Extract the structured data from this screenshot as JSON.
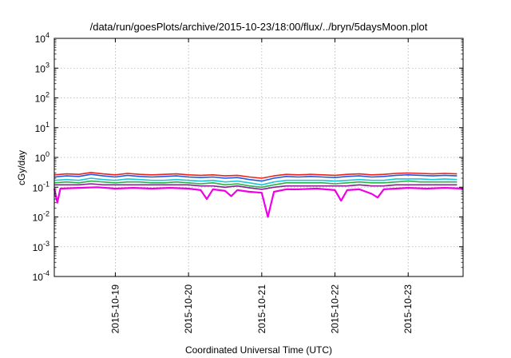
{
  "chart_data": {
    "type": "line",
    "title": "/data/run/goesPlots/archive/2015-10-23/18:00/flux/../bryn/5daysMoon.plot",
    "xlabel": "Coordinated Universal Time (UTC)",
    "ylabel": "cGy/day",
    "yscale": "log",
    "ylim": [
      0.0001,
      10000
    ],
    "xlim": [
      "2015-10-18T04:00",
      "2015-10-23T18:00"
    ],
    "grid": true,
    "x_ticks": [
      "2015-10-19",
      "2015-10-20",
      "2015-10-21",
      "2015-10-22",
      "2015-10-23"
    ],
    "y_ticks": [
      {
        "value": 0.0001,
        "base": "10",
        "exp": "-4"
      },
      {
        "value": 0.001,
        "base": "10",
        "exp": "-3"
      },
      {
        "value": 0.01,
        "base": "10",
        "exp": "-2"
      },
      {
        "value": 0.1,
        "base": "10",
        "exp": "-1"
      },
      {
        "value": 1,
        "base": "10",
        "exp": "0"
      },
      {
        "value": 10,
        "base": "10",
        "exp": "1"
      },
      {
        "value": 100,
        "base": "10",
        "exp": "2"
      },
      {
        "value": 1000,
        "base": "10",
        "exp": "3"
      },
      {
        "value": 10000,
        "base": "10",
        "exp": "4"
      }
    ],
    "series": [
      {
        "color": "#e8241c",
        "values": [
          [
            "2015-10-18T04:00",
            0.26
          ],
          [
            "2015-10-18T08:00",
            0.28
          ],
          [
            "2015-10-18T12:00",
            0.27
          ],
          [
            "2015-10-18T16:00",
            0.31
          ],
          [
            "2015-10-18T20:00",
            0.28
          ],
          [
            "2015-10-19T00:00",
            0.26
          ],
          [
            "2015-10-19T04:00",
            0.29
          ],
          [
            "2015-10-19T08:00",
            0.27
          ],
          [
            "2015-10-19T12:00",
            0.26
          ],
          [
            "2015-10-19T16:00",
            0.27
          ],
          [
            "2015-10-19T20:00",
            0.28
          ],
          [
            "2015-10-20T00:00",
            0.26
          ],
          [
            "2015-10-20T04:00",
            0.25
          ],
          [
            "2015-10-20T08:00",
            0.26
          ],
          [
            "2015-10-20T12:00",
            0.24
          ],
          [
            "2015-10-20T16:00",
            0.25
          ],
          [
            "2015-10-20T20:00",
            0.22
          ],
          [
            "2015-10-21T00:00",
            0.2
          ],
          [
            "2015-10-21T04:00",
            0.24
          ],
          [
            "2015-10-21T08:00",
            0.27
          ],
          [
            "2015-10-21T12:00",
            0.26
          ],
          [
            "2015-10-21T16:00",
            0.27
          ],
          [
            "2015-10-21T20:00",
            0.26
          ],
          [
            "2015-10-22T00:00",
            0.25
          ],
          [
            "2015-10-22T04:00",
            0.27
          ],
          [
            "2015-10-22T08:00",
            0.28
          ],
          [
            "2015-10-22T12:00",
            0.26
          ],
          [
            "2015-10-22T16:00",
            0.27
          ],
          [
            "2015-10-22T20:00",
            0.29
          ],
          [
            "2015-10-23T00:00",
            0.3
          ],
          [
            "2015-10-23T04:00",
            0.29
          ],
          [
            "2015-10-23T08:00",
            0.28
          ],
          [
            "2015-10-23T12:00",
            0.29
          ],
          [
            "2015-10-23T16:00",
            0.28
          ]
        ]
      },
      {
        "color": "#1e5ae6",
        "values": [
          [
            "2015-10-18T04:00",
            0.22
          ],
          [
            "2015-10-18T08:00",
            0.24
          ],
          [
            "2015-10-18T12:00",
            0.23
          ],
          [
            "2015-10-18T16:00",
            0.27
          ],
          [
            "2015-10-18T20:00",
            0.24
          ],
          [
            "2015-10-19T00:00",
            0.22
          ],
          [
            "2015-10-19T04:00",
            0.25
          ],
          [
            "2015-10-19T08:00",
            0.23
          ],
          [
            "2015-10-19T12:00",
            0.22
          ],
          [
            "2015-10-19T16:00",
            0.23
          ],
          [
            "2015-10-19T20:00",
            0.24
          ],
          [
            "2015-10-20T00:00",
            0.22
          ],
          [
            "2015-10-20T04:00",
            0.21
          ],
          [
            "2015-10-20T08:00",
            0.22
          ],
          [
            "2015-10-20T12:00",
            0.2
          ],
          [
            "2015-10-20T16:00",
            0.21
          ],
          [
            "2015-10-20T20:00",
            0.18
          ],
          [
            "2015-10-21T00:00",
            0.16
          ],
          [
            "2015-10-21T04:00",
            0.2
          ],
          [
            "2015-10-21T08:00",
            0.23
          ],
          [
            "2015-10-21T12:00",
            0.22
          ],
          [
            "2015-10-21T16:00",
            0.23
          ],
          [
            "2015-10-21T20:00",
            0.22
          ],
          [
            "2015-10-22T00:00",
            0.21
          ],
          [
            "2015-10-22T04:00",
            0.23
          ],
          [
            "2015-10-22T08:00",
            0.24
          ],
          [
            "2015-10-22T12:00",
            0.22
          ],
          [
            "2015-10-22T16:00",
            0.23
          ],
          [
            "2015-10-22T20:00",
            0.25
          ],
          [
            "2015-10-23T00:00",
            0.26
          ],
          [
            "2015-10-23T04:00",
            0.25
          ],
          [
            "2015-10-23T08:00",
            0.24
          ],
          [
            "2015-10-23T12:00",
            0.25
          ],
          [
            "2015-10-23T16:00",
            0.24
          ]
        ]
      },
      {
        "color": "#19c8d8",
        "values": [
          [
            "2015-10-18T04:00",
            0.17
          ],
          [
            "2015-10-18T08:00",
            0.18
          ],
          [
            "2015-10-18T12:00",
            0.17
          ],
          [
            "2015-10-18T16:00",
            0.2
          ],
          [
            "2015-10-18T20:00",
            0.18
          ],
          [
            "2015-10-19T00:00",
            0.17
          ],
          [
            "2015-10-19T04:00",
            0.19
          ],
          [
            "2015-10-19T08:00",
            0.18
          ],
          [
            "2015-10-19T12:00",
            0.17
          ],
          [
            "2015-10-19T16:00",
            0.17
          ],
          [
            "2015-10-19T20:00",
            0.18
          ],
          [
            "2015-10-20T00:00",
            0.17
          ],
          [
            "2015-10-20T04:00",
            0.16
          ],
          [
            "2015-10-20T08:00",
            0.17
          ],
          [
            "2015-10-20T12:00",
            0.15
          ],
          [
            "2015-10-20T16:00",
            0.16
          ],
          [
            "2015-10-20T20:00",
            0.14
          ],
          [
            "2015-10-21T00:00",
            0.12
          ],
          [
            "2015-10-21T04:00",
            0.15
          ],
          [
            "2015-10-21T08:00",
            0.17
          ],
          [
            "2015-10-21T12:00",
            0.17
          ],
          [
            "2015-10-21T16:00",
            0.17
          ],
          [
            "2015-10-21T20:00",
            0.17
          ],
          [
            "2015-10-22T00:00",
            0.16
          ],
          [
            "2015-10-22T04:00",
            0.17
          ],
          [
            "2015-10-22T08:00",
            0.18
          ],
          [
            "2015-10-22T12:00",
            0.17
          ],
          [
            "2015-10-22T16:00",
            0.17
          ],
          [
            "2015-10-22T20:00",
            0.19
          ],
          [
            "2015-10-23T00:00",
            0.19
          ],
          [
            "2015-10-23T04:00",
            0.19
          ],
          [
            "2015-10-23T08:00",
            0.18
          ],
          [
            "2015-10-23T12:00",
            0.19
          ],
          [
            "2015-10-23T16:00",
            0.18
          ]
        ]
      },
      {
        "color": "#2db24a",
        "values": [
          [
            "2015-10-18T04:00",
            0.14
          ],
          [
            "2015-10-18T08:00",
            0.15
          ],
          [
            "2015-10-18T12:00",
            0.14
          ],
          [
            "2015-10-18T16:00",
            0.16
          ],
          [
            "2015-10-18T20:00",
            0.15
          ],
          [
            "2015-10-19T00:00",
            0.14
          ],
          [
            "2015-10-19T04:00",
            0.15
          ],
          [
            "2015-10-19T08:00",
            0.15
          ],
          [
            "2015-10-19T12:00",
            0.14
          ],
          [
            "2015-10-19T16:00",
            0.14
          ],
          [
            "2015-10-19T20:00",
            0.15
          ],
          [
            "2015-10-20T00:00",
            0.14
          ],
          [
            "2015-10-20T04:00",
            0.13
          ],
          [
            "2015-10-20T08:00",
            0.14
          ],
          [
            "2015-10-20T12:00",
            0.12
          ],
          [
            "2015-10-20T16:00",
            0.13
          ],
          [
            "2015-10-20T20:00",
            0.11
          ],
          [
            "2015-10-21T00:00",
            0.1
          ],
          [
            "2015-10-21T04:00",
            0.12
          ],
          [
            "2015-10-21T08:00",
            0.14
          ],
          [
            "2015-10-21T12:00",
            0.14
          ],
          [
            "2015-10-21T16:00",
            0.14
          ],
          [
            "2015-10-21T20:00",
            0.14
          ],
          [
            "2015-10-22T00:00",
            0.13
          ],
          [
            "2015-10-22T04:00",
            0.14
          ],
          [
            "2015-10-22T08:00",
            0.15
          ],
          [
            "2015-10-22T12:00",
            0.14
          ],
          [
            "2015-10-22T16:00",
            0.14
          ],
          [
            "2015-10-22T20:00",
            0.15
          ],
          [
            "2015-10-23T00:00",
            0.16
          ],
          [
            "2015-10-23T04:00",
            0.15
          ],
          [
            "2015-10-23T08:00",
            0.15
          ],
          [
            "2015-10-23T12:00",
            0.15
          ],
          [
            "2015-10-23T16:00",
            0.15
          ]
        ]
      },
      {
        "color": "#8c1e96",
        "values": [
          [
            "2015-10-18T04:00",
            0.12
          ],
          [
            "2015-10-18T08:00",
            0.12
          ],
          [
            "2015-10-18T12:00",
            0.12
          ],
          [
            "2015-10-18T16:00",
            0.13
          ],
          [
            "2015-10-18T20:00",
            0.12
          ],
          [
            "2015-10-19T00:00",
            0.12
          ],
          [
            "2015-10-19T04:00",
            0.12
          ],
          [
            "2015-10-19T08:00",
            0.12
          ],
          [
            "2015-10-19T12:00",
            0.12
          ],
          [
            "2015-10-19T16:00",
            0.12
          ],
          [
            "2015-10-19T20:00",
            0.12
          ],
          [
            "2015-10-20T00:00",
            0.12
          ],
          [
            "2015-10-20T04:00",
            0.11
          ],
          [
            "2015-10-20T08:00",
            0.11
          ],
          [
            "2015-10-20T12:00",
            0.1
          ],
          [
            "2015-10-20T16:00",
            0.11
          ],
          [
            "2015-10-20T20:00",
            0.095
          ],
          [
            "2015-10-21T00:00",
            0.085
          ],
          [
            "2015-10-21T04:00",
            0.1
          ],
          [
            "2015-10-21T08:00",
            0.11
          ],
          [
            "2015-10-21T12:00",
            0.11
          ],
          [
            "2015-10-21T16:00",
            0.11
          ],
          [
            "2015-10-21T20:00",
            0.11
          ],
          [
            "2015-10-22T00:00",
            0.11
          ],
          [
            "2015-10-22T04:00",
            0.11
          ],
          [
            "2015-10-22T08:00",
            0.12
          ],
          [
            "2015-10-22T12:00",
            0.11
          ],
          [
            "2015-10-22T16:00",
            0.11
          ],
          [
            "2015-10-22T20:00",
            0.12
          ],
          [
            "2015-10-23T00:00",
            0.12
          ],
          [
            "2015-10-23T04:00",
            0.12
          ],
          [
            "2015-10-23T08:00",
            0.12
          ],
          [
            "2015-10-23T12:00",
            0.12
          ],
          [
            "2015-10-23T16:00",
            0.12
          ]
        ]
      },
      {
        "color": "#f000e6",
        "values": [
          [
            "2015-10-18T04:00",
            0.09
          ],
          [
            "2015-10-18T05:00",
            0.03
          ],
          [
            "2015-10-18T06:00",
            0.09
          ],
          [
            "2015-10-18T12:00",
            0.095
          ],
          [
            "2015-10-18T18:00",
            0.1
          ],
          [
            "2015-10-19T00:00",
            0.09
          ],
          [
            "2015-10-19T06:00",
            0.095
          ],
          [
            "2015-10-19T12:00",
            0.09
          ],
          [
            "2015-10-19T18:00",
            0.095
          ],
          [
            "2015-10-20T00:00",
            0.09
          ],
          [
            "2015-10-20T04:00",
            0.08
          ],
          [
            "2015-10-20T06:00",
            0.04
          ],
          [
            "2015-10-20T08:00",
            0.085
          ],
          [
            "2015-10-20T12:00",
            0.075
          ],
          [
            "2015-10-20T14:00",
            0.05
          ],
          [
            "2015-10-20T16:00",
            0.08
          ],
          [
            "2015-10-20T20:00",
            0.07
          ],
          [
            "2015-10-21T00:00",
            0.065
          ],
          [
            "2015-10-21T02:00",
            0.01
          ],
          [
            "2015-10-21T04:00",
            0.07
          ],
          [
            "2015-10-21T08:00",
            0.085
          ],
          [
            "2015-10-21T12:00",
            0.085
          ],
          [
            "2015-10-21T18:00",
            0.09
          ],
          [
            "2015-10-22T00:00",
            0.08
          ],
          [
            "2015-10-22T02:00",
            0.035
          ],
          [
            "2015-10-22T04:00",
            0.08
          ],
          [
            "2015-10-22T08:00",
            0.085
          ],
          [
            "2015-10-22T12:00",
            0.06
          ],
          [
            "2015-10-22T14:00",
            0.045
          ],
          [
            "2015-10-22T16:00",
            0.085
          ],
          [
            "2015-10-22T20:00",
            0.09
          ],
          [
            "2015-10-23T00:00",
            0.095
          ],
          [
            "2015-10-23T06:00",
            0.09
          ],
          [
            "2015-10-23T12:00",
            0.095
          ],
          [
            "2015-10-23T18:00",
            0.09
          ]
        ]
      }
    ]
  }
}
